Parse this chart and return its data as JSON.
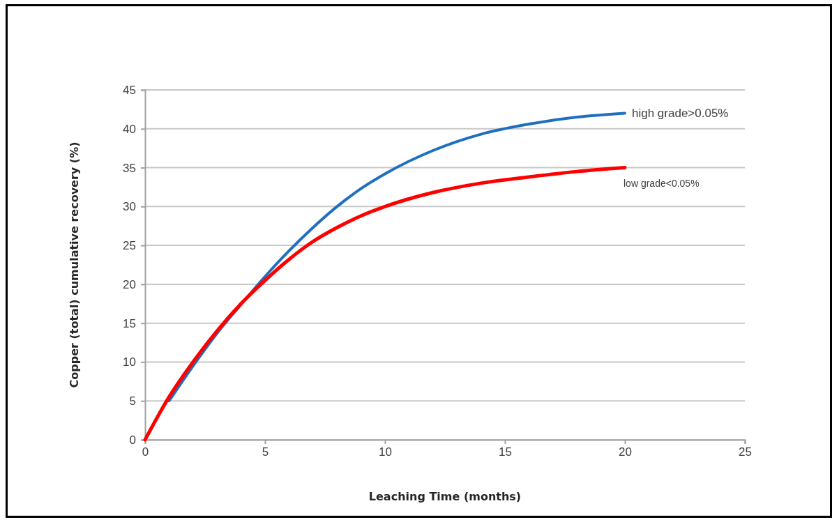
{
  "chart_data": {
    "type": "line",
    "xlabel": "Leaching Time (months)",
    "ylabel": "Copper (total) cumulative recovery (%)",
    "xlim": [
      0,
      25
    ],
    "xticks": [
      0,
      5,
      10,
      15,
      20,
      25
    ],
    "ylim": [
      0,
      45
    ],
    "yticks": [
      0,
      5,
      10,
      15,
      20,
      25,
      30,
      35,
      40,
      45
    ],
    "grid": "y",
    "legend": false,
    "marker": "none",
    "line_style": "solid",
    "series": [
      {
        "name": "high grade>0.05%",
        "color": "#1f6fc0",
        "x": [
          1,
          2,
          3,
          4,
          5,
          6,
          7,
          8,
          9,
          10,
          12,
          14,
          16,
          18,
          20
        ],
        "values": [
          5,
          9.5,
          13.7,
          17.4,
          21,
          24.3,
          27.3,
          30,
          32.3,
          34.2,
          37.2,
          39.3,
          40.6,
          41.5,
          42
        ]
      },
      {
        "name": "low grade<0.05%",
        "color": "#ff0000",
        "x": [
          0,
          1,
          2,
          3,
          4,
          5,
          6,
          7,
          8,
          9,
          10,
          12,
          14,
          16,
          18,
          20
        ],
        "values": [
          0,
          5.5,
          10,
          14,
          17.5,
          20.5,
          23.2,
          25.5,
          27.3,
          28.8,
          30,
          31.8,
          33,
          33.8,
          34.5,
          35
        ]
      }
    ]
  }
}
